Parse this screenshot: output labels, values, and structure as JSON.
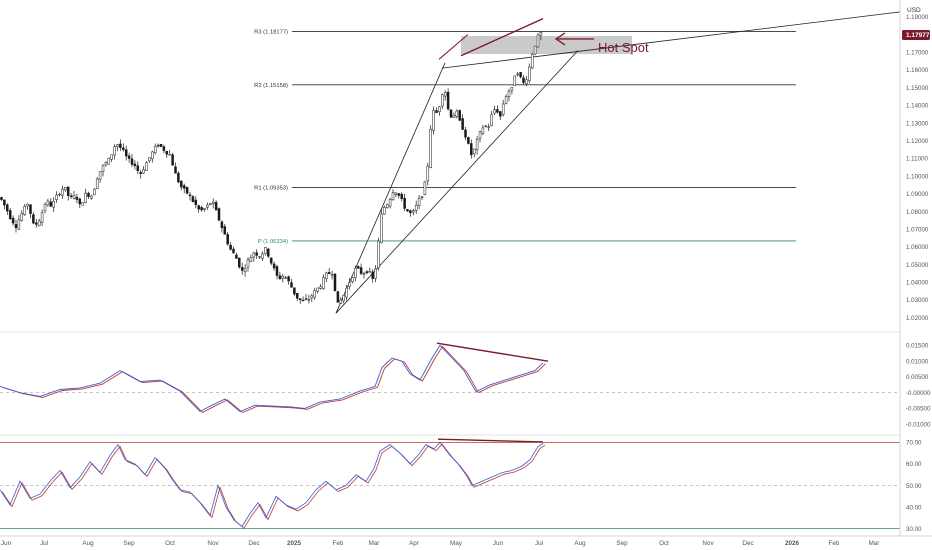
{
  "chart_data": {
    "type": "candlestick",
    "currency": "USD",
    "symbol_note": "EUR/USD style weekly/daily candles with pivot levels",
    "x_months": [
      "Jun",
      "Jul",
      "Aug",
      "Sep",
      "Oct",
      "Nov",
      "Dec",
      "2025",
      "Feb",
      "Mar",
      "Apr",
      "May",
      "Jun",
      "Jul",
      "Aug",
      "Sep",
      "Oct",
      "Nov",
      "Dec",
      "2026",
      "Feb",
      "Mar"
    ],
    "price_axis": {
      "ticks": [
        "1.19000",
        "1.18000",
        "1.17000",
        "1.16000",
        "1.15000",
        "1.14000",
        "1.13000",
        "1.12000",
        "1.11000",
        "1.10000",
        "1.09000",
        "1.08000",
        "1.07000",
        "1.06000",
        "1.05000",
        "1.04000",
        "1.03000",
        "1.02000"
      ],
      "ylim": [
        1.013,
        1.195
      ],
      "current_price": "1.17977"
    },
    "levels": [
      {
        "label": "R3 (1.18177)",
        "value": 1.18177,
        "color": "#333333"
      },
      {
        "label": "R2 (1.15158)",
        "value": 1.15158,
        "color": "#333333"
      },
      {
        "label": "R1 (1.09353)",
        "value": 1.09353,
        "color": "#333333"
      },
      {
        "label": "P (1.06334)",
        "value": 1.06334,
        "color": "#2e8b57"
      }
    ],
    "annotation": "Hot Spot",
    "close_path": [
      [
        0,
        1.088
      ],
      [
        6,
        1.082
      ],
      [
        11,
        1.076
      ],
      [
        16,
        1.072
      ],
      [
        22,
        1.079
      ],
      [
        28,
        1.085
      ],
      [
        34,
        1.071
      ],
      [
        40,
        1.076
      ],
      [
        46,
        1.086
      ],
      [
        52,
        1.083
      ],
      [
        58,
        1.09
      ],
      [
        64,
        1.094
      ],
      [
        70,
        1.087
      ],
      [
        76,
        1.089
      ],
      [
        80,
        1.083
      ],
      [
        86,
        1.09
      ],
      [
        92,
        1.089
      ],
      [
        98,
        1.101
      ],
      [
        104,
        1.106
      ],
      [
        110,
        1.11
      ],
      [
        116,
        1.119
      ],
      [
        122,
        1.115
      ],
      [
        128,
        1.109
      ],
      [
        134,
        1.107
      ],
      [
        140,
        1.101
      ],
      [
        146,
        1.107
      ],
      [
        152,
        1.113
      ],
      [
        158,
        1.118
      ],
      [
        164,
        1.115
      ],
      [
        170,
        1.112
      ],
      [
        176,
        1.1
      ],
      [
        182,
        1.093
      ],
      [
        188,
        1.09
      ],
      [
        194,
        1.085
      ],
      [
        200,
        1.08
      ],
      [
        206,
        1.082
      ],
      [
        212,
        1.086
      ],
      [
        218,
        1.077
      ],
      [
        224,
        1.068
      ],
      [
        230,
        1.059
      ],
      [
        236,
        1.054
      ],
      [
        242,
        1.046
      ],
      [
        248,
        1.052
      ],
      [
        254,
        1.057
      ],
      [
        260,
        1.055
      ],
      [
        266,
        1.059
      ],
      [
        272,
        1.05
      ],
      [
        278,
        1.042
      ],
      [
        284,
        1.044
      ],
      [
        290,
        1.039
      ],
      [
        296,
        1.032
      ],
      [
        302,
        1.029
      ],
      [
        308,
        1.03
      ],
      [
        314,
        1.034
      ],
      [
        320,
        1.038
      ],
      [
        326,
        1.044
      ],
      [
        332,
        1.046
      ],
      [
        338,
        1.027
      ],
      [
        344,
        1.033
      ],
      [
        350,
        1.041
      ],
      [
        356,
        1.048
      ],
      [
        362,
        1.045
      ],
      [
        368,
        1.047
      ],
      [
        374,
        1.04
      ],
      [
        378,
        1.06
      ],
      [
        382,
        1.081
      ],
      [
        388,
        1.085
      ],
      [
        394,
        1.093
      ],
      [
        400,
        1.088
      ],
      [
        406,
        1.081
      ],
      [
        412,
        1.078
      ],
      [
        418,
        1.085
      ],
      [
        424,
        1.092
      ],
      [
        428,
        1.107
      ],
      [
        432,
        1.137
      ],
      [
        436,
        1.135
      ],
      [
        440,
        1.141
      ],
      [
        444,
        1.152
      ],
      [
        448,
        1.138
      ],
      [
        452,
        1.133
      ],
      [
        456,
        1.137
      ],
      [
        460,
        1.13
      ],
      [
        464,
        1.126
      ],
      [
        468,
        1.118
      ],
      [
        472,
        1.111
      ],
      [
        476,
        1.118
      ],
      [
        480,
        1.124
      ],
      [
        484,
        1.129
      ],
      [
        488,
        1.127
      ],
      [
        492,
        1.135
      ],
      [
        496,
        1.139
      ],
      [
        500,
        1.133
      ],
      [
        504,
        1.143
      ],
      [
        508,
        1.148
      ],
      [
        512,
        1.149
      ],
      [
        516,
        1.161
      ],
      [
        520,
        1.156
      ],
      [
        524,
        1.152
      ],
      [
        528,
        1.158
      ],
      [
        532,
        1.169
      ],
      [
        536,
        1.176
      ],
      [
        540,
        1.181
      ],
      [
        543,
        1.1798
      ]
    ],
    "oscillator_1": {
      "ticks": [
        "0.01500",
        "0.01000",
        "0.00500",
        "-0.00000",
        "-0.00500",
        "-0.01000"
      ],
      "ylim": [
        -0.0125,
        0.018
      ],
      "zero_line": 0,
      "path": [
        [
          0,
          0.002
        ],
        [
          20,
          0.0
        ],
        [
          40,
          -0.0012
        ],
        [
          60,
          0.001
        ],
        [
          80,
          0.0015
        ],
        [
          100,
          0.003
        ],
        [
          120,
          0.007
        ],
        [
          140,
          0.0035
        ],
        [
          160,
          0.004
        ],
        [
          180,
          0.0005
        ],
        [
          200,
          -0.006
        ],
        [
          212,
          -0.004
        ],
        [
          225,
          -0.002
        ],
        [
          240,
          -0.006
        ],
        [
          255,
          -0.004
        ],
        [
          270,
          -0.0042
        ],
        [
          290,
          -0.0045
        ],
        [
          305,
          -0.005
        ],
        [
          320,
          -0.003
        ],
        [
          340,
          -0.002
        ],
        [
          360,
          0.0005
        ],
        [
          375,
          0.002
        ],
        [
          382,
          0.008
        ],
        [
          392,
          0.011
        ],
        [
          402,
          0.01
        ],
        [
          410,
          0.006
        ],
        [
          420,
          0.004
        ],
        [
          432,
          0.011
        ],
        [
          440,
          0.015
        ],
        [
          452,
          0.011
        ],
        [
          464,
          0.007
        ],
        [
          476,
          0.0003
        ],
        [
          490,
          0.0025
        ],
        [
          505,
          0.004
        ],
        [
          520,
          0.0055
        ],
        [
          535,
          0.007
        ],
        [
          543,
          0.0095
        ]
      ]
    },
    "oscillator_2": {
      "ticks": [
        "70.00",
        "60.00",
        "50.00",
        "40.00",
        "30.00"
      ],
      "ylim": [
        27.5,
        72.5
      ],
      "upper_line": 70,
      "middle_line": 50,
      "lower_line": 30,
      "path": [
        [
          0,
          48
        ],
        [
          10,
          41
        ],
        [
          20,
          52
        ],
        [
          30,
          44
        ],
        [
          40,
          46
        ],
        [
          50,
          52
        ],
        [
          60,
          57
        ],
        [
          70,
          49
        ],
        [
          80,
          54
        ],
        [
          90,
          61
        ],
        [
          100,
          56
        ],
        [
          110,
          64
        ],
        [
          118,
          69
        ],
        [
          125,
          62
        ],
        [
          135,
          60
        ],
        [
          145,
          55
        ],
        [
          155,
          63
        ],
        [
          165,
          58
        ],
        [
          172,
          53
        ],
        [
          180,
          48
        ],
        [
          190,
          47
        ],
        [
          200,
          42
        ],
        [
          210,
          36
        ],
        [
          218,
          50
        ],
        [
          226,
          40
        ],
        [
          234,
          34
        ],
        [
          242,
          31
        ],
        [
          250,
          37
        ],
        [
          258,
          42
        ],
        [
          266,
          35
        ],
        [
          276,
          45
        ],
        [
          286,
          41
        ],
        [
          296,
          39
        ],
        [
          306,
          42
        ],
        [
          316,
          48
        ],
        [
          326,
          52
        ],
        [
          336,
          48
        ],
        [
          346,
          50
        ],
        [
          356,
          55
        ],
        [
          366,
          52
        ],
        [
          374,
          58
        ],
        [
          380,
          66
        ],
        [
          390,
          69
        ],
        [
          400,
          65
        ],
        [
          410,
          60
        ],
        [
          418,
          64
        ],
        [
          426,
          69
        ],
        [
          434,
          67
        ],
        [
          440,
          70
        ],
        [
          450,
          64
        ],
        [
          458,
          60
        ],
        [
          466,
          55
        ],
        [
          472,
          50
        ],
        [
          482,
          52
        ],
        [
          492,
          54
        ],
        [
          502,
          56
        ],
        [
          512,
          57
        ],
        [
          522,
          59
        ],
        [
          530,
          62
        ],
        [
          538,
          68
        ],
        [
          543,
          69.5
        ]
      ]
    }
  }
}
